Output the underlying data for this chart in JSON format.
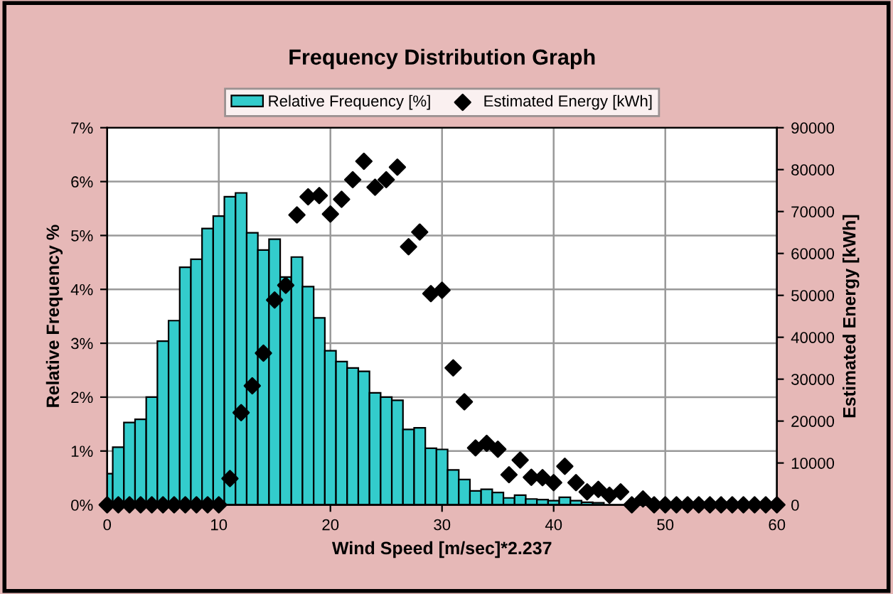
{
  "chart_data": {
    "type": "bar",
    "title": "Frequency Distribution Graph",
    "xlabel": "Wind Speed [m/sec]*2.237",
    "ylabel": "Relative Frequency %",
    "y2label": "Estimated Energy [kWh]",
    "series": [
      {
        "name": "Relative Frequency [%]",
        "color": "#33cccc",
        "x": [
          0,
          1,
          2,
          3,
          4,
          5,
          6,
          7,
          8,
          9,
          10,
          11,
          12,
          13,
          14,
          15,
          16,
          17,
          18,
          19,
          20,
          21,
          22,
          23,
          24,
          25,
          26,
          27,
          28,
          29,
          30,
          31,
          32,
          33,
          34,
          35,
          36,
          37,
          38,
          39,
          40,
          41,
          42,
          43,
          44,
          45,
          46,
          47
        ],
        "values": [
          0.58,
          1.07,
          1.53,
          1.59,
          2.0,
          3.04,
          3.42,
          4.41,
          4.56,
          5.13,
          5.36,
          5.72,
          5.79,
          5.05,
          4.73,
          4.93,
          4.23,
          4.6,
          4.05,
          3.47,
          2.86,
          2.66,
          2.54,
          2.48,
          2.08,
          2.0,
          1.94,
          1.4,
          1.43,
          1.05,
          1.03,
          0.65,
          0.47,
          0.26,
          0.29,
          0.23,
          0.13,
          0.18,
          0.11,
          0.1,
          0.08,
          0.14,
          0.08,
          0.05,
          0.04,
          null,
          null,
          0.01
        ]
      },
      {
        "name": "Estimated Energy [kWh]",
        "type": "scatter",
        "axis": "y2",
        "color": "#000000",
        "marker": "diamond",
        "x": [
          0,
          1,
          2,
          3,
          4,
          5,
          6,
          7,
          8,
          9,
          10,
          11,
          12,
          13,
          14,
          15,
          16,
          17,
          18,
          19,
          20,
          21,
          22,
          23,
          24,
          25,
          26,
          27,
          28,
          29,
          30,
          31,
          32,
          33,
          34,
          35,
          36,
          37,
          38,
          39,
          40,
          41,
          42,
          43,
          44,
          45,
          46,
          47,
          48,
          49,
          50,
          51,
          52,
          53,
          54,
          55,
          56,
          57,
          58,
          59,
          60
        ],
        "values": [
          0,
          0,
          0,
          0,
          0,
          0,
          0,
          0,
          0,
          0,
          0,
          6300,
          22000,
          28400,
          36200,
          48900,
          52400,
          69200,
          73500,
          73800,
          69400,
          72900,
          77600,
          82000,
          75800,
          77600,
          80600,
          61600,
          65100,
          50400,
          51200,
          32700,
          24600,
          13600,
          14700,
          13300,
          7200,
          10700,
          6600,
          6500,
          5300,
          9200,
          5300,
          3100,
          3700,
          2300,
          3100,
          0,
          1400,
          0,
          0,
          0,
          0,
          0,
          0,
          0,
          0,
          0,
          0,
          0,
          0
        ]
      }
    ],
    "xlim": [
      0,
      60
    ],
    "xticks": [
      0,
      10,
      20,
      30,
      40,
      50,
      60
    ],
    "ylim": [
      0,
      7
    ],
    "yticks": [
      {
        "value": 0,
        "label": "0%"
      },
      {
        "value": 1,
        "label": "1%"
      },
      {
        "value": 2,
        "label": "2%"
      },
      {
        "value": 3,
        "label": "3%"
      },
      {
        "value": 4,
        "label": "4%"
      },
      {
        "value": 5,
        "label": "5%"
      },
      {
        "value": 6,
        "label": "6%"
      },
      {
        "value": 7,
        "label": "7%"
      }
    ],
    "y2lim": [
      0,
      90000
    ],
    "y2ticks": [
      0,
      10000,
      20000,
      30000,
      40000,
      50000,
      60000,
      70000,
      80000,
      90000
    ],
    "grid": true,
    "legend": "top"
  }
}
